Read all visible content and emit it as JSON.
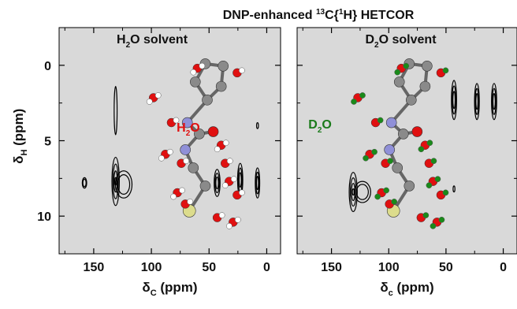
{
  "figure_title_parts": {
    "pre": "DNP-enhanced ",
    "sup": "13",
    "mid": "C{",
    "sup2": "1",
    "post": "H} HETCOR"
  },
  "colors": {
    "panel_bg": "#d9d9d9",
    "contour": "#000000",
    "carbon": "#8a8a8a",
    "nitrogen": "#9090d8",
    "oxygen": "#e01010",
    "hydrogen": "#ffffff",
    "sulfur": "#dcdc8c",
    "deuterium": "#1a8a1a",
    "h2o_label": "#e01010",
    "d2o_label": "#1a7a1a"
  },
  "chart_data": [
    {
      "type": "contour",
      "panel_title": {
        "pre": "H",
        "sub": "2",
        "post": "O solvent"
      },
      "xlabel": {
        "main": "δ",
        "sub": "C",
        "rest": " (ppm)"
      },
      "ylabel": {
        "main": "δ",
        "sub": "H",
        "rest": " (ppm)"
      },
      "xlim": [
        180,
        -12
      ],
      "ylim": [
        -2.5,
        12.5
      ],
      "x_ticks": [
        "150",
        "100",
        "50",
        "0"
      ],
      "y_ticks": [
        "0",
        "5",
        "10"
      ],
      "inset_label": {
        "pre": "H",
        "sub": "2",
        "post": "O"
      },
      "peaks": [
        {
          "x": 158,
          "y": 7.8,
          "sx": 1.2,
          "sy": 0.35,
          "levels": 2
        },
        {
          "x": 131,
          "y": 7.7,
          "sx": 2.0,
          "sy": 1.6,
          "levels": 4
        },
        {
          "x": 131,
          "y": 3.0,
          "sx": 0.8,
          "sy": 1.6,
          "levels": 1
        },
        {
          "x": 124,
          "y": 7.9,
          "sx": 4.5,
          "sy": 0.9,
          "levels": 2
        },
        {
          "x": 43,
          "y": 7.8,
          "sx": 1.6,
          "sy": 0.9,
          "levels": 3
        },
        {
          "x": 23,
          "y": 7.6,
          "sx": 1.4,
          "sy": 1.1,
          "levels": 3
        },
        {
          "x": 8,
          "y": 7.8,
          "sx": 1.2,
          "sy": 1.0,
          "levels": 3
        },
        {
          "x": 8,
          "y": 4.0,
          "sx": 0.4,
          "sy": 0.2,
          "levels": 1
        }
      ]
    },
    {
      "type": "contour",
      "panel_title": {
        "pre": "D",
        "sub": "2",
        "post": "O solvent"
      },
      "xlabel": {
        "main": "δ",
        "sub": "c",
        "rest": " (ppm)"
      },
      "ylabel": null,
      "xlim": [
        180,
        -12
      ],
      "ylim": [
        -2.5,
        12.5
      ],
      "x_ticks": [
        "150",
        "100",
        "50",
        "0"
      ],
      "y_ticks": [],
      "inset_label": {
        "pre": "D",
        "sub": "2",
        "post": "O"
      },
      "peaks": [
        {
          "x": 131,
          "y": 8.4,
          "sx": 2.2,
          "sy": 1.3,
          "levels": 4
        },
        {
          "x": 123,
          "y": 8.4,
          "sx": 4.5,
          "sy": 0.7,
          "levels": 2
        },
        {
          "x": 43,
          "y": 2.3,
          "sx": 1.4,
          "sy": 1.3,
          "levels": 3
        },
        {
          "x": 43,
          "y": 8.2,
          "sx": 0.4,
          "sy": 0.2,
          "levels": 1
        },
        {
          "x": 23,
          "y": 2.4,
          "sx": 1.3,
          "sy": 1.2,
          "levels": 3
        },
        {
          "x": 8,
          "y": 2.4,
          "sx": 1.4,
          "sy": 1.2,
          "levels": 3
        }
      ]
    }
  ]
}
